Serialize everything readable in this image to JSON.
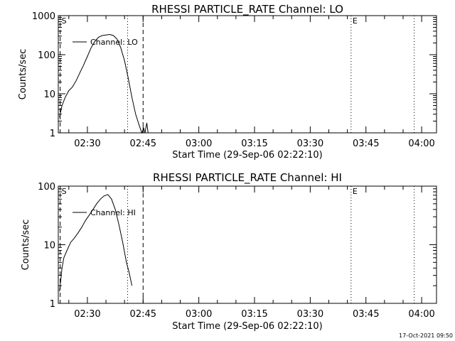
{
  "chart_data": [
    {
      "type": "line",
      "title": "RHESSI PARTICLE_RATE Channel: LO",
      "xlabel": "Start Time (29-Sep-06 02:22:10)",
      "ylabel": "Counts/sec",
      "yscale": "log",
      "ylim": [
        1,
        1000
      ],
      "xlim": [
        "02:22:10",
        "04:04:00"
      ],
      "x_ticks": [
        "02:30",
        "02:45",
        "03:00",
        "03:15",
        "03:30",
        "03:45",
        "04:00"
      ],
      "y_ticks": [
        "1",
        "10",
        "100",
        "1000"
      ],
      "legend": {
        "entry": "Channel: LO",
        "placement": "top-left"
      },
      "markers": {
        "start": "S",
        "end": "E"
      },
      "vlines": [
        {
          "time": "02:22:40",
          "style": "dashed"
        },
        {
          "time": "02:40:50",
          "style": "dotted"
        },
        {
          "time": "02:45:00",
          "style": "dashed"
        },
        {
          "time": "03:41:00",
          "style": "dotted"
        },
        {
          "time": "03:58:00",
          "style": "dotted"
        }
      ],
      "series": [
        {
          "x": [
            "02:22:30",
            "02:23:10",
            "02:24:00",
            "02:25:00",
            "02:26:00",
            "02:27:00",
            "02:28:00",
            "02:29:00",
            "02:30:00",
            "02:31:00",
            "02:32:00",
            "02:33:00",
            "02:34:00",
            "02:35:00",
            "02:36:00",
            "02:37:00",
            "02:38:00",
            "02:39:00",
            "02:40:00",
            "02:41:00",
            "02:42:00",
            "02:43:00",
            "02:44:00",
            "02:44:40",
            "02:45:10",
            "02:45:30",
            "02:46:00",
            "02:46:20"
          ],
          "values": [
            2.5,
            5,
            8,
            12,
            15,
            22,
            35,
            55,
            90,
            150,
            220,
            280,
            310,
            320,
            330,
            310,
            250,
            150,
            70,
            25,
            8,
            3,
            1.5,
            1,
            1.3,
            1,
            1.8,
            1
          ]
        }
      ]
    },
    {
      "type": "line",
      "title": "RHESSI PARTICLE_RATE Channel: HI",
      "xlabel": "Start Time (29-Sep-06 02:22:10)",
      "ylabel": "Counts/sec",
      "yscale": "log",
      "ylim": [
        1,
        100
      ],
      "xlim": [
        "02:22:10",
        "04:04:00"
      ],
      "x_ticks": [
        "02:30",
        "02:45",
        "03:00",
        "03:15",
        "03:30",
        "03:45",
        "04:00"
      ],
      "y_ticks": [
        "1",
        "10",
        "100"
      ],
      "legend": {
        "entry": "Channel: HI",
        "placement": "top-left"
      },
      "markers": {
        "start": "S",
        "end": "E"
      },
      "vlines": [
        {
          "time": "02:22:40",
          "style": "dashed"
        },
        {
          "time": "02:40:50",
          "style": "dotted"
        },
        {
          "time": "02:45:00",
          "style": "dashed"
        },
        {
          "time": "03:41:00",
          "style": "dotted"
        },
        {
          "time": "03:58:00",
          "style": "dotted"
        }
      ],
      "series": [
        {
          "x": [
            "02:22:30",
            "02:22:50",
            "02:23:10",
            "02:23:40",
            "02:24:30",
            "02:25:30",
            "02:26:30",
            "02:27:30",
            "02:28:30",
            "02:29:30",
            "02:30:30",
            "02:31:30",
            "02:32:30",
            "02:33:30",
            "02:34:30",
            "02:35:30",
            "02:36:30",
            "02:37:30",
            "02:38:30",
            "02:39:30",
            "02:40:30",
            "02:41:10",
            "02:41:40",
            "02:42:00"
          ],
          "values": [
            1.6,
            2.5,
            4,
            6,
            8,
            11,
            13,
            16,
            20,
            26,
            32,
            40,
            50,
            60,
            68,
            72,
            60,
            40,
            22,
            11,
            5,
            3.5,
            2.5,
            2
          ]
        }
      ]
    }
  ],
  "footer": {
    "timestamp": "17-Oct-2021 09:50"
  }
}
